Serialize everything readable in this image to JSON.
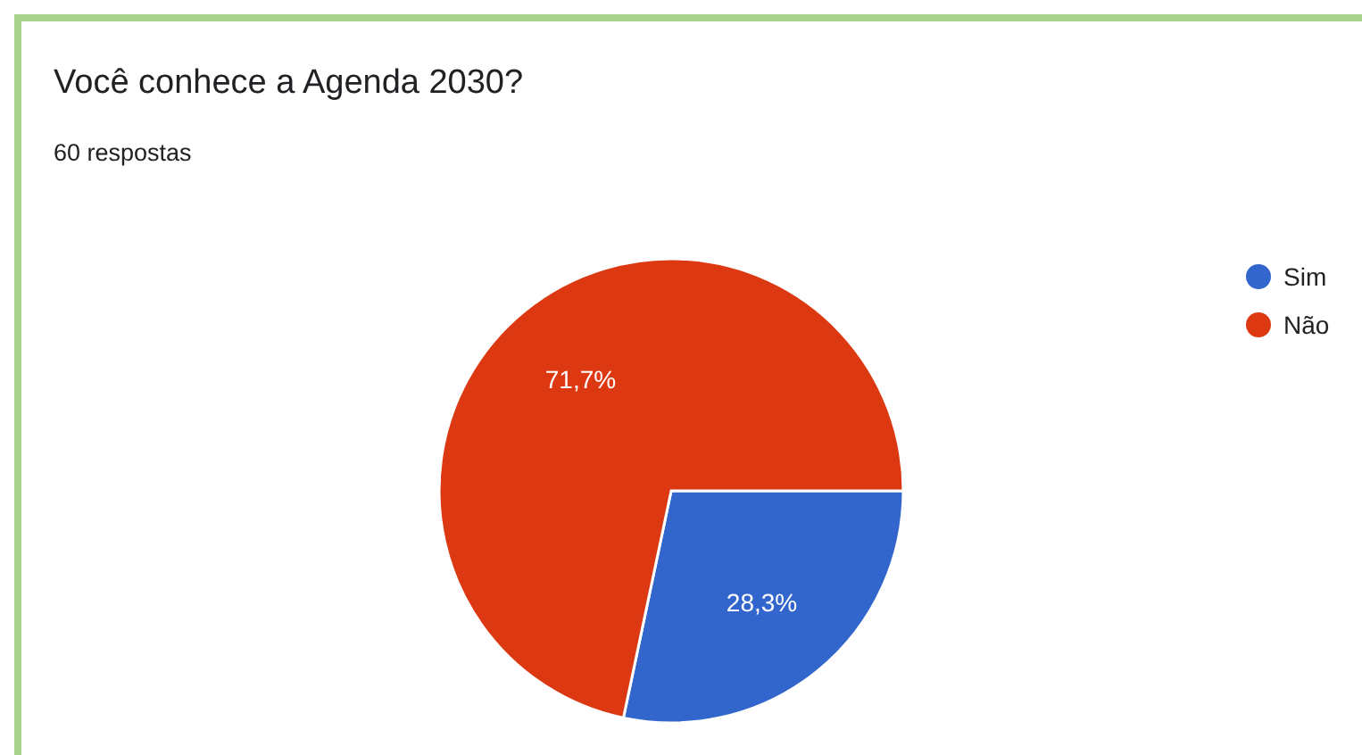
{
  "chart_data": {
    "type": "pie",
    "title": "Você conhece a Agenda 2030?",
    "subtitle": "60 respostas",
    "categories": [
      "Sim",
      "Não"
    ],
    "values": [
      28.3,
      71.7
    ],
    "colors": [
      "#3366cc",
      "#dc3912"
    ],
    "value_labels": [
      "28,3%",
      "71,7%"
    ],
    "legend": "top right"
  }
}
